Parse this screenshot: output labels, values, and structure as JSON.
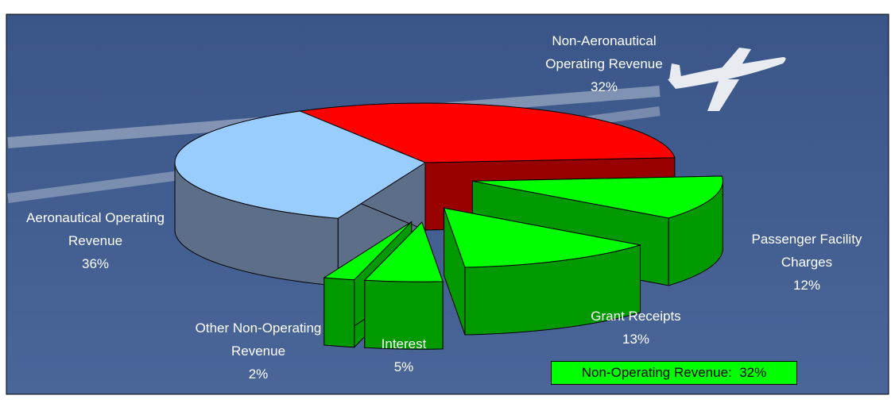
{
  "chart_data": {
    "type": "pie3d",
    "categories": [
      "Non-Aeronautical Operating Revenue",
      "Passenger Facility Charges",
      "Grant Receipts",
      "Interest",
      "Other Non-Operating Revenue",
      "Aeronautical Operating Revenue"
    ],
    "values": [
      32,
      12,
      13,
      5,
      2,
      36
    ],
    "value_labels": [
      "32%",
      "12%",
      "13%",
      "5%",
      "2%",
      "36%"
    ],
    "colors": [
      "#ff0000",
      "#00ff00",
      "#00ff00",
      "#00ff00",
      "#00ff00",
      "#99ccff"
    ],
    "annotation": "Non-Operating Revenue:  32%"
  }
}
